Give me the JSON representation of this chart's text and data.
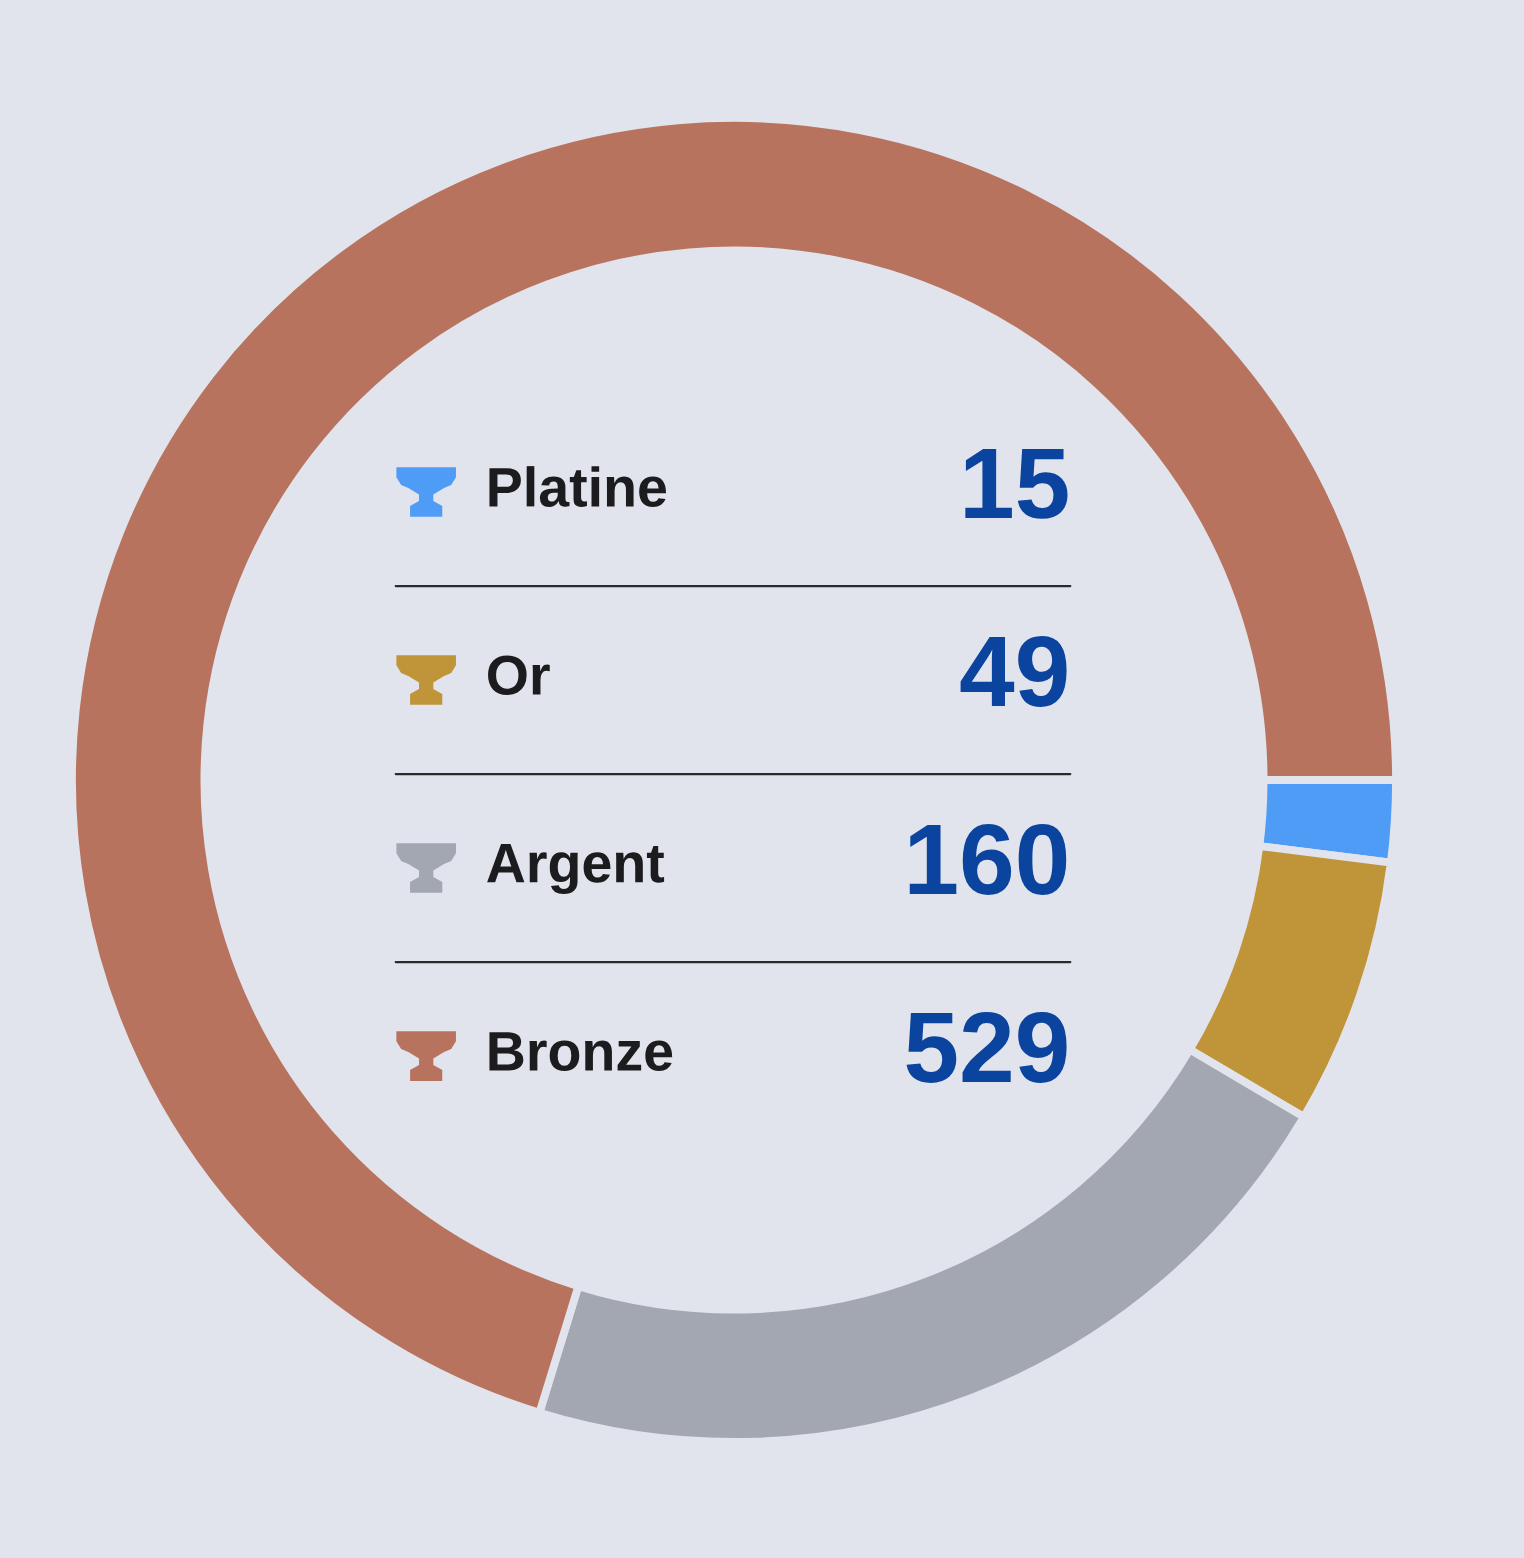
{
  "chart_data": {
    "type": "donut",
    "categories": [
      "Platine",
      "Or",
      "Argent",
      "Bronze"
    ],
    "values": [
      15,
      49,
      160,
      529
    ],
    "colors": [
      "#4f9cf6",
      "#c09438",
      "#a2a7b1",
      "#b8735f"
    ],
    "data_labels": true,
    "legend": "center"
  }
}
